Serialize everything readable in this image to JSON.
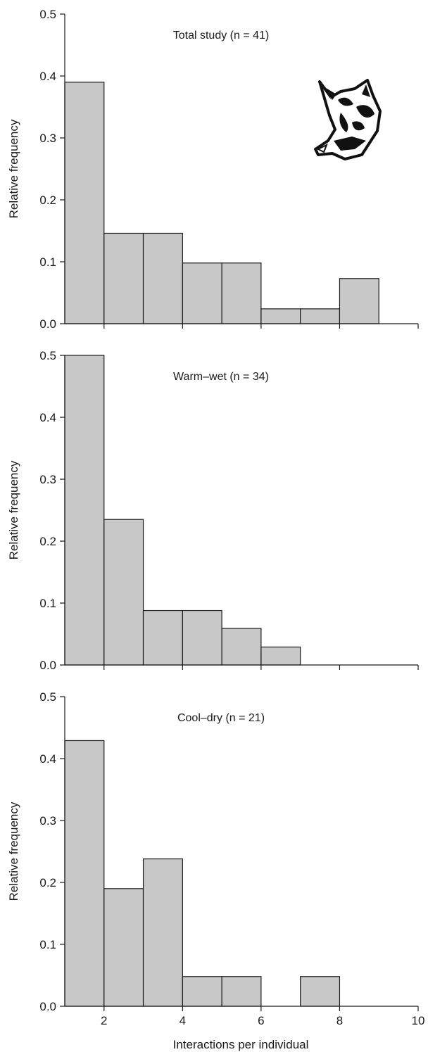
{
  "x_axis": {
    "label": "Interactions per individual",
    "range": [
      1,
      10
    ],
    "ticks": [
      2,
      4,
      6,
      8,
      10
    ],
    "tick_labels": [
      "2",
      "4",
      "6",
      "8",
      "10"
    ]
  },
  "y_axis": {
    "label": "Relative frequency",
    "ticks": [
      0.0,
      0.1,
      0.2,
      0.3,
      0.4,
      0.5
    ],
    "tick_labels": [
      "0.0",
      "0.1",
      "0.2",
      "0.3",
      "0.4",
      "0.5"
    ]
  },
  "icon": "fox-head-icon",
  "colors": {
    "bar_fill": "#c8c8c8",
    "bar_stroke": "#1a1a1a"
  },
  "chart_data": [
    {
      "type": "bar",
      "title": "Total study (n = 41)",
      "xlabel": "",
      "ylabel": "Relative frequency",
      "ylim": [
        0,
        0.5
      ],
      "xlim": [
        1,
        10
      ],
      "bin_edges": [
        1,
        2,
        3,
        4,
        5,
        6,
        7,
        8,
        9
      ],
      "values": [
        0.39,
        0.146,
        0.146,
        0.098,
        0.098,
        0.024,
        0.024,
        0.073
      ]
    },
    {
      "type": "bar",
      "title": "Warm–wet (n = 34)",
      "xlabel": "",
      "ylabel": "Relative frequency",
      "ylim": [
        0,
        0.5
      ],
      "xlim": [
        1,
        10
      ],
      "bin_edges": [
        1,
        2,
        3,
        4,
        5,
        6,
        7
      ],
      "values": [
        0.5,
        0.235,
        0.088,
        0.088,
        0.059,
        0.029
      ]
    },
    {
      "type": "bar",
      "title": "Cool–dry (n = 21)",
      "xlabel": "Interactions per individual",
      "ylabel": "Relative frequency",
      "ylim": [
        0,
        0.5
      ],
      "xlim": [
        1,
        10
      ],
      "bin_edges": [
        1,
        2,
        3,
        4,
        5,
        6,
        7,
        8
      ],
      "values": [
        0.429,
        0.19,
        0.238,
        0.048,
        0.048,
        0.0,
        0.048
      ]
    }
  ]
}
